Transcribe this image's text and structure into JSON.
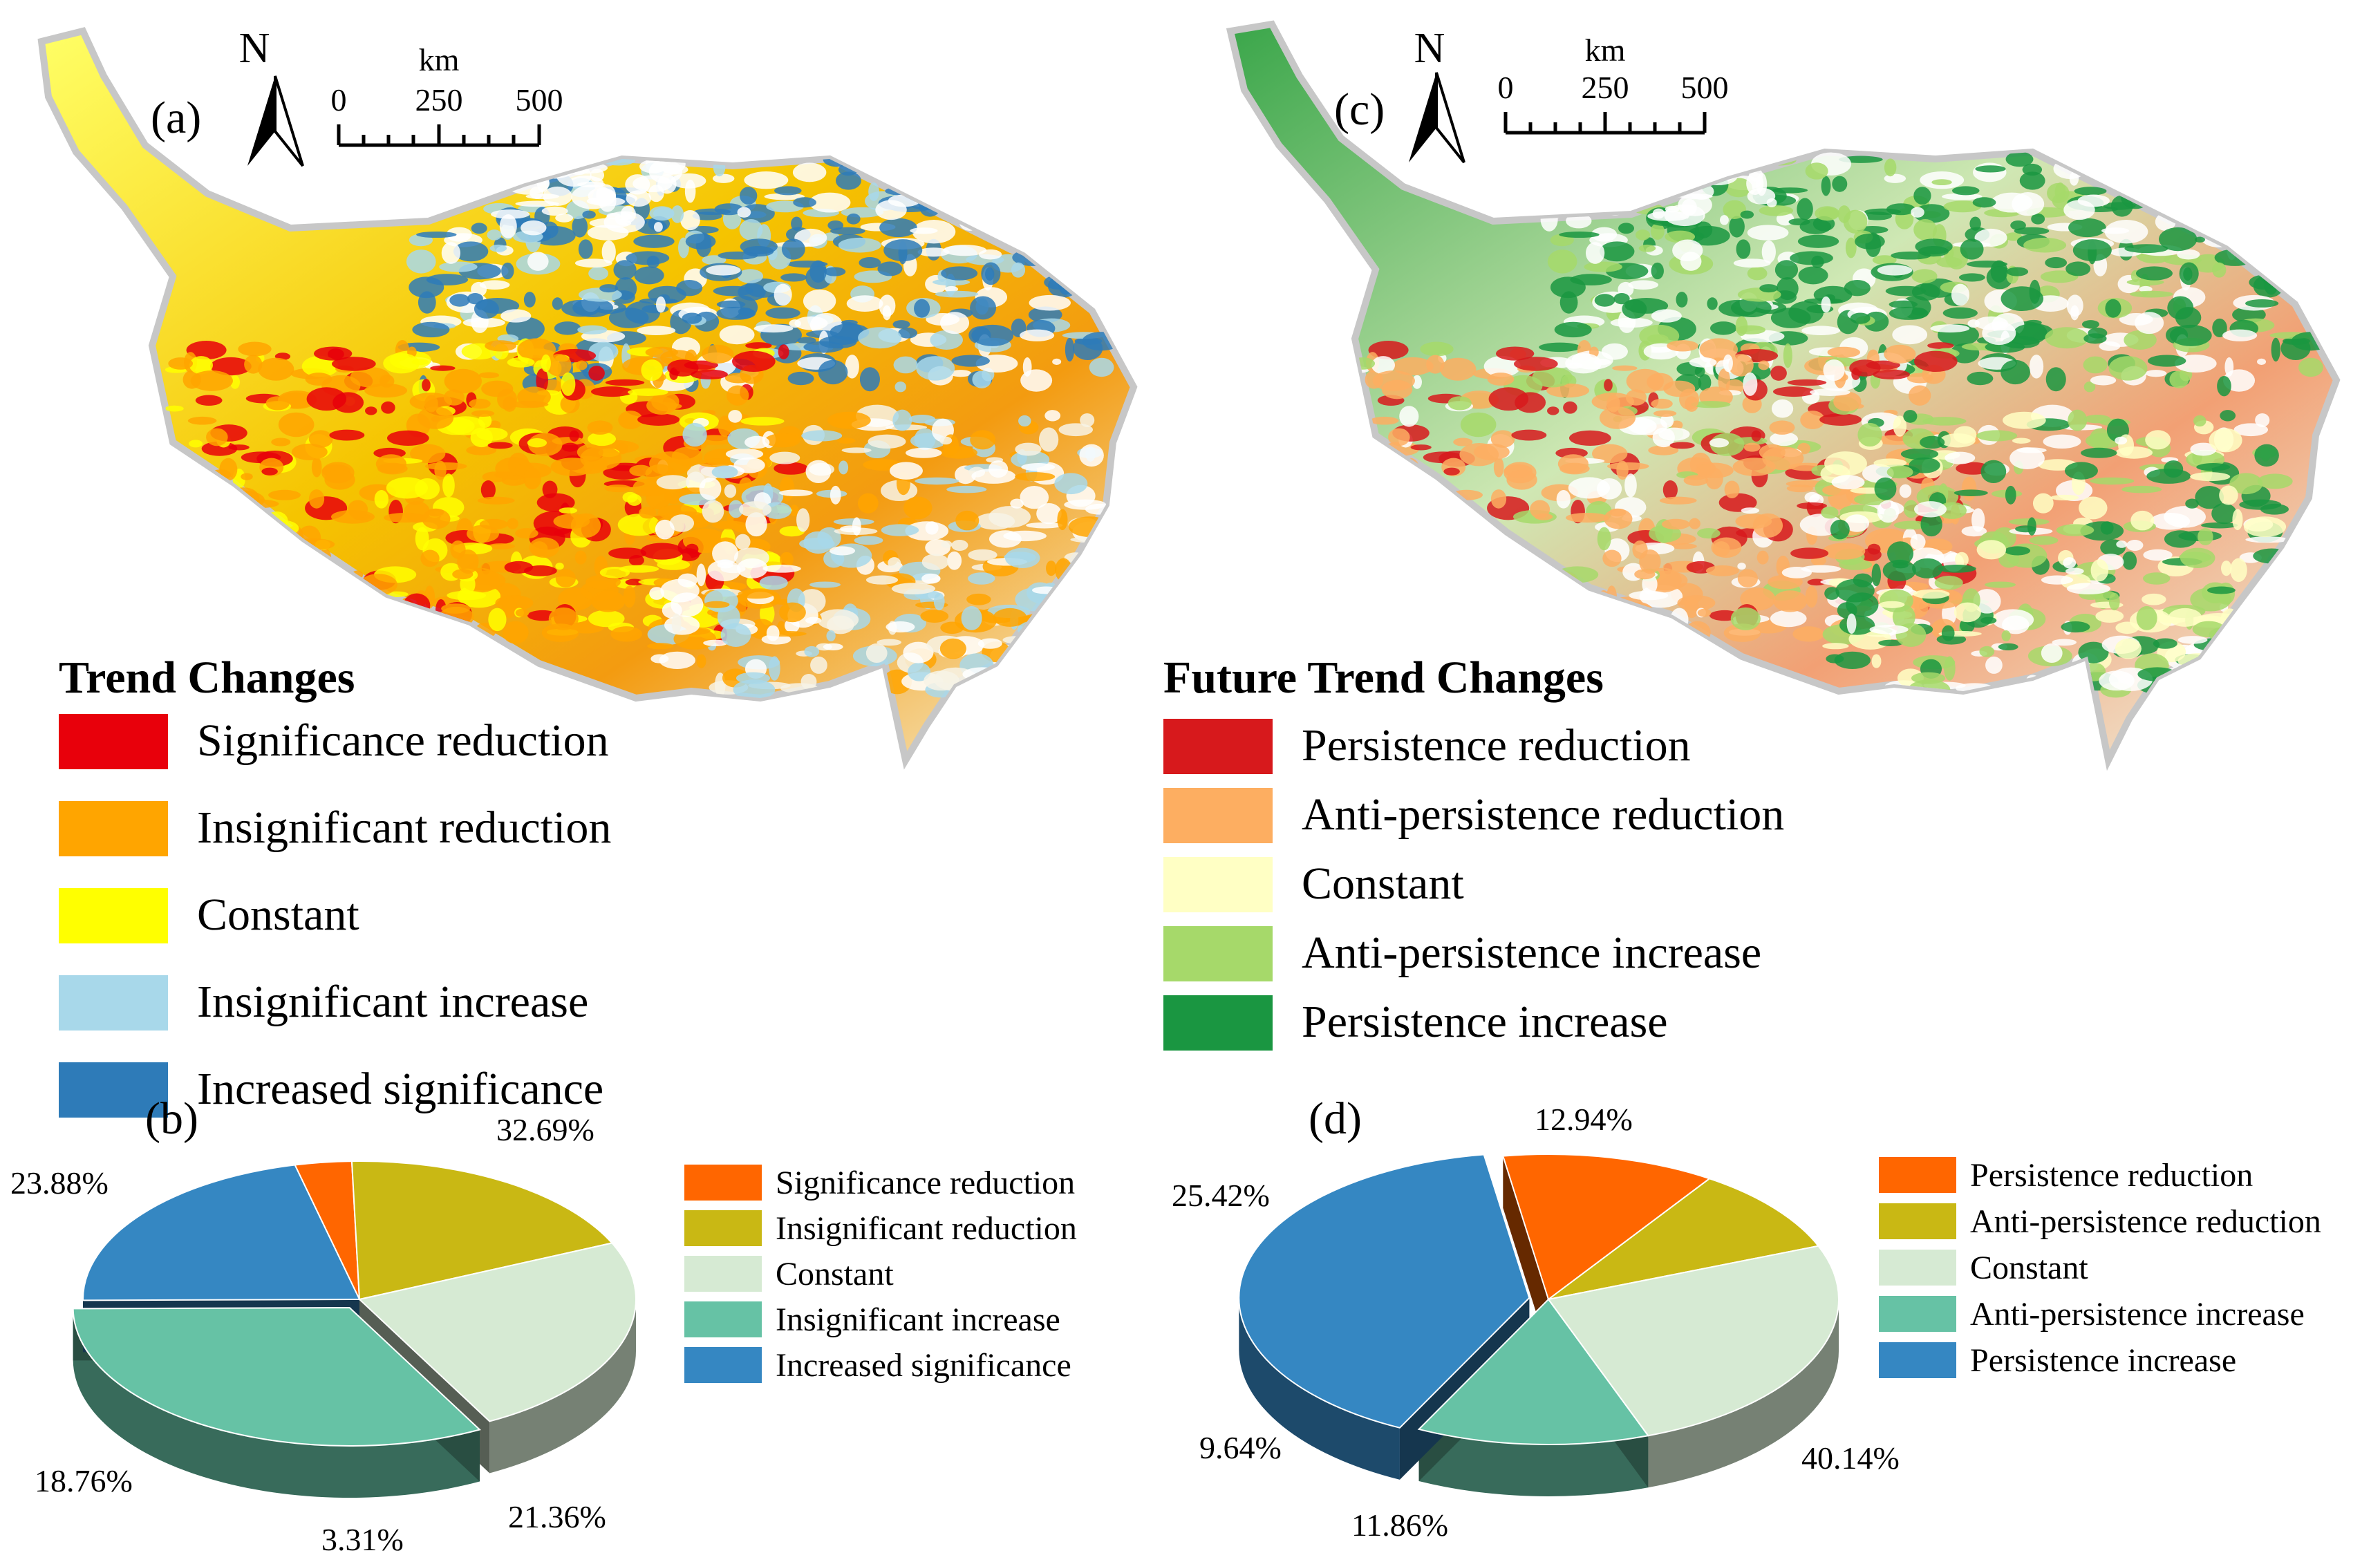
{
  "panel_a": {
    "label": "(a)",
    "north": "N",
    "scale": {
      "unit": "km",
      "ticks": [
        "0",
        "250",
        "500"
      ]
    },
    "legend_title": "Trend Changes",
    "legend": [
      {
        "label": "Significance reduction",
        "color": "#e8000b"
      },
      {
        "label": "Insignificant reduction",
        "color": "#ffa500"
      },
      {
        "label": "Constant",
        "color": "#ffff00"
      },
      {
        "label": "Insignificant increase",
        "color": "#a8d8ea"
      },
      {
        "label": "Increased significance",
        "color": "#2e7bb8"
      }
    ]
  },
  "panel_c": {
    "label": "(c)",
    "north": "N",
    "scale": {
      "unit": "km",
      "ticks": [
        "0",
        "250",
        "500"
      ]
    },
    "legend_title": "Future Trend Changes",
    "legend": [
      {
        "label": "Persistence reduction",
        "color": "#d7191c"
      },
      {
        "label": "Anti-persistence reduction",
        "color": "#fdae61"
      },
      {
        "label": "Constant",
        "color": "#ffffc4"
      },
      {
        "label": "Anti-persistence increase",
        "color": "#a6d96a"
      },
      {
        "label": "Persistence increase",
        "color": "#1a9641"
      }
    ]
  },
  "chart_data": [
    {
      "type": "pie",
      "panel_label": "(b)",
      "categories": [
        "Significance reduction",
        "Insignificant reduction",
        "Constant",
        "Insignificant increase",
        "Increased significance"
      ],
      "values": [
        3.31,
        18.76,
        23.88,
        32.69,
        21.36
      ],
      "value_labels": [
        "3.31%",
        "18.76%",
        "23.88%",
        "32.69%",
        "21.36%"
      ],
      "colors": [
        "#ff6600",
        "#c9b814",
        "#d6ead3",
        "#66c2a5",
        "#3587c2"
      ],
      "legend_position": "right"
    },
    {
      "type": "pie",
      "panel_label": "(d)",
      "categories": [
        "Persistence reduction",
        "Anti-persistence reduction",
        "Constant",
        "Anti-persistence increase",
        "Persistence increase"
      ],
      "values": [
        11.86,
        9.64,
        25.42,
        12.94,
        40.14
      ],
      "value_labels": [
        "11.86%",
        "9.64%",
        "25.42%",
        "12.94%",
        "40.14%"
      ],
      "colors": [
        "#ff6600",
        "#c9b814",
        "#d6ead3",
        "#66c2a5",
        "#3587c2"
      ],
      "legend_position": "right"
    }
  ]
}
